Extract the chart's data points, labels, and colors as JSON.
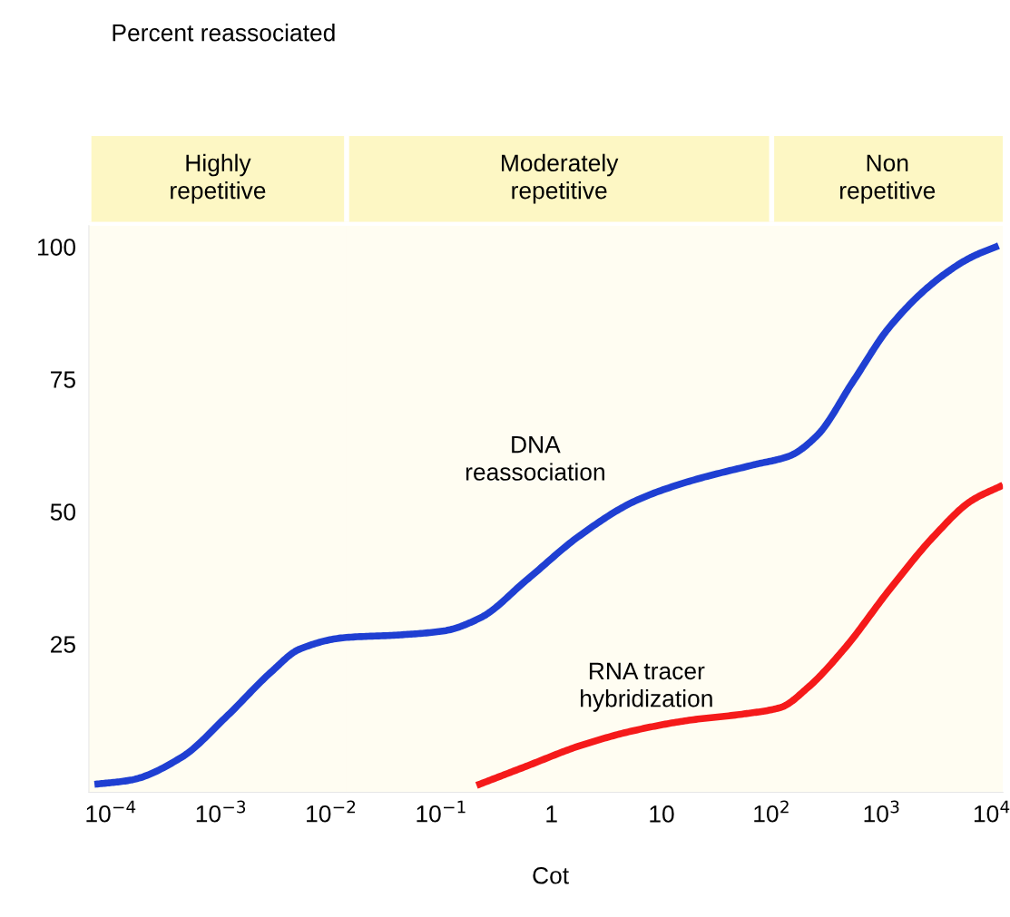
{
  "chart_data": {
    "type": "line",
    "xlabel": "Cot",
    "log": "x",
    "xlim": [
      6.3e-05,
      12600
    ],
    "ylim": [
      -3,
      104
    ],
    "xticks": [
      {
        "value": 0.0001,
        "label": "10$^{−4}$"
      },
      {
        "value": 0.001,
        "label": "10$^{−3}$"
      },
      {
        "value": 0.01,
        "label": "10$^{−2}$"
      },
      {
        "value": 0.1,
        "label": "10$^{−1}$"
      },
      {
        "value": 1,
        "label": "1"
      },
      {
        "value": 10,
        "label": "10"
      },
      {
        "value": 100,
        "label": "10$^{2}$"
      },
      {
        "value": 1000,
        "label": "10$^{3}$"
      },
      {
        "value": 10000,
        "label": "10$^{4}$"
      }
    ],
    "yticks": [
      25,
      50,
      75,
      100
    ],
    "grid": false,
    "series": [
      {
        "color": "#1f3fd2",
        "x": [
          7.08e-05,
          0.000151,
          0.000437,
          0.00112,
          0.00288,
          0.00513,
          0.0132,
          0.0407,
          0.107,
          0.229,
          0.589,
          1.82,
          5.75,
          17.8,
          67.6,
          145,
          257,
          550,
          1170,
          3020,
          6460,
          11500
        ],
        "values": [
          -1.5,
          -0.7,
          3.6,
          11.3,
          19.8,
          24,
          26.2,
          26.7,
          27.5,
          30,
          37,
          45.5,
          52,
          55.7,
          58.8,
          60.5,
          64.3,
          74.6,
          84.8,
          93.4,
          98,
          100.2
        ]
      },
      {
        "color": "#f51a1a",
        "x": [
          0.209,
          0.589,
          1.82,
          5.75,
          17.8,
          56.2,
          120,
          214,
          457,
          1170,
          3020,
          6460,
          12600
        ],
        "values": [
          -1.7,
          1.9,
          5.8,
          8.7,
          10.6,
          11.8,
          13,
          16.8,
          24.1,
          35.2,
          45.5,
          52,
          55
        ]
      }
    ],
    "bands": [
      {
        "axis": "x",
        "from": 6.3e-05,
        "to": 0.0138,
        "label": "Highly\nrepetitive",
        "color": "#fdf7c4"
      },
      {
        "axis": "x",
        "from": 0.0138,
        "to": 100,
        "label": "Moderately\nrepetitive",
        "color": "#fdf7c4"
      },
      {
        "axis": "x",
        "from": 100,
        "to": 12600,
        "label": "Non\nrepetitive",
        "color": "#fdf7c4"
      }
    ],
    "annotations": [
      "Percent reassociated",
      "DNA\nreassociation",
      "RNA tracer\nhybridization"
    ]
  }
}
